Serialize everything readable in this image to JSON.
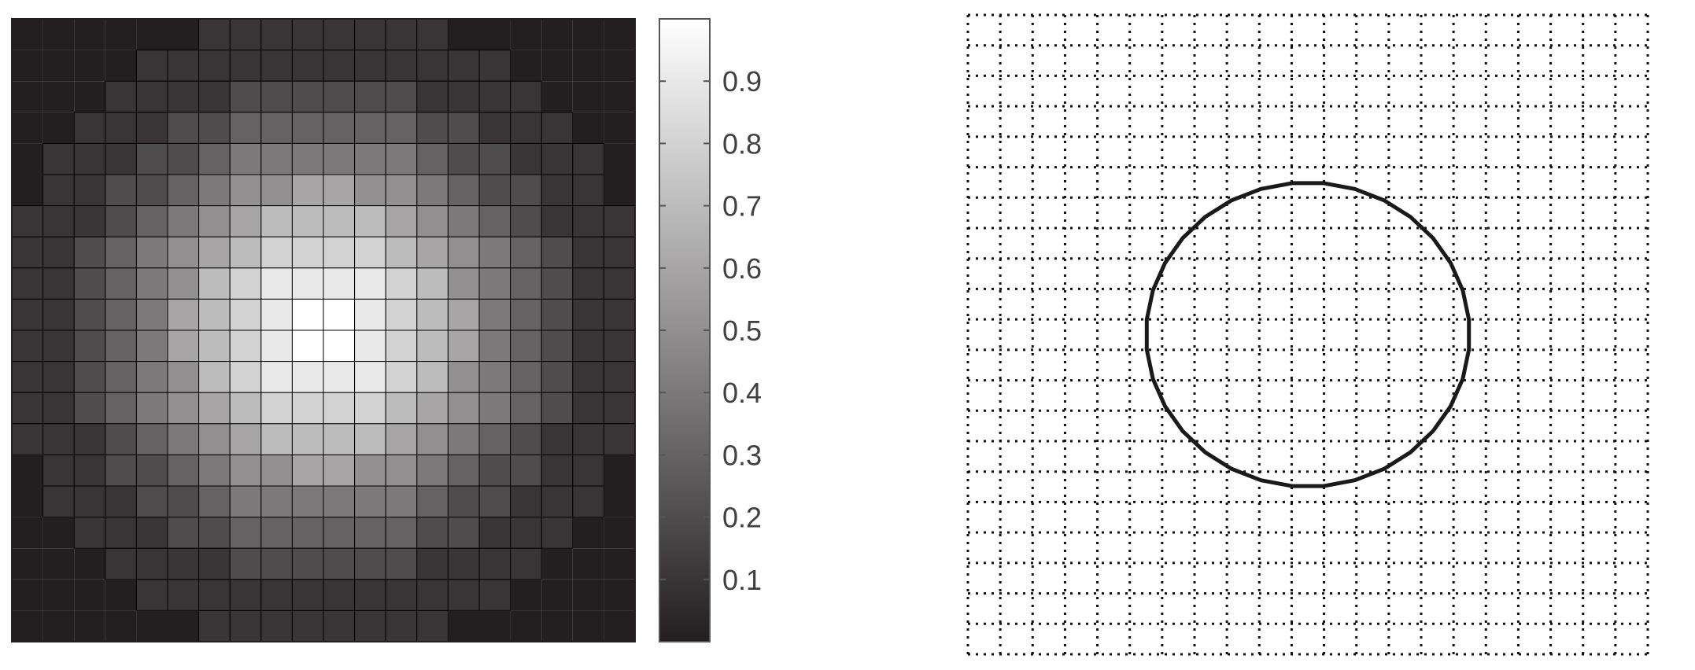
{
  "chart_data": [
    {
      "type": "heatmap",
      "title": "",
      "xlabel": "",
      "ylabel": "",
      "grid_size": [
        20,
        20
      ],
      "colormap": "gray",
      "cell_edges": true,
      "value_model": "gaussian",
      "peak_value": 1.0,
      "sigma_cells": 4.2,
      "center_cell": [
        10,
        10
      ],
      "value_range": [
        0,
        1
      ],
      "colors": {
        "low": "#231f20",
        "high": "#ffffff",
        "edge": "#000000"
      },
      "colorbar": {
        "position": "right",
        "range": [
          0,
          1
        ],
        "ticks": [
          0.1,
          0.2,
          0.3,
          0.4,
          0.5,
          0.6,
          0.7,
          0.8,
          0.9
        ],
        "tick_labels": [
          "0.1",
          "0.2",
          "0.3",
          "0.4",
          "0.5",
          "0.6",
          "0.7",
          "0.8",
          "0.9"
        ]
      }
    },
    {
      "type": "line",
      "title": "",
      "xlabel": "",
      "ylabel": "",
      "grid": "dotted",
      "grid_lines": 22,
      "xlim": [
        0,
        21
      ],
      "ylim": [
        0,
        21
      ],
      "series": [
        {
          "shape": "circle",
          "center": [
            10.5,
            10.5
          ],
          "radius": 5,
          "segments": 32,
          "color": "#1a1a1a"
        }
      ]
    }
  ]
}
